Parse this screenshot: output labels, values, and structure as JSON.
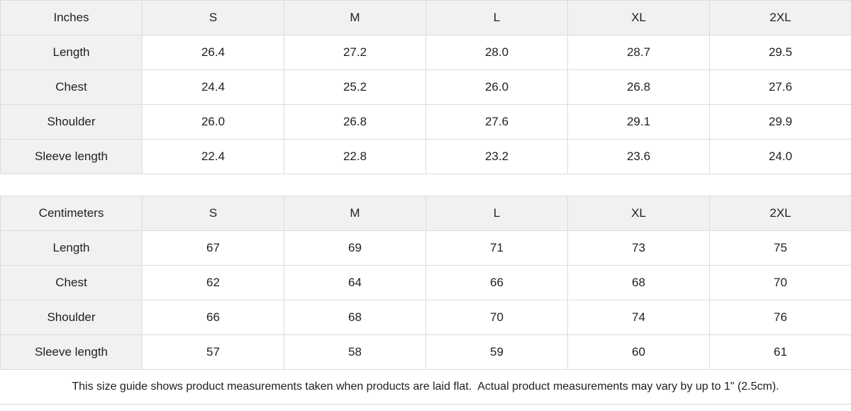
{
  "size_guide": {
    "inches": {
      "unit_label": "Inches",
      "sizes": [
        "S",
        "M",
        "L",
        "XL",
        "2XL"
      ],
      "rows": [
        {
          "label": "Length",
          "values": [
            "26.4",
            "27.2",
            "28.0",
            "28.7",
            "29.5"
          ]
        },
        {
          "label": "Chest",
          "values": [
            "24.4",
            "25.2",
            "26.0",
            "26.8",
            "27.6"
          ]
        },
        {
          "label": "Shoulder",
          "values": [
            "26.0",
            "26.8",
            "27.6",
            "29.1",
            "29.9"
          ]
        },
        {
          "label": "Sleeve length",
          "values": [
            "22.4",
            "22.8",
            "23.2",
            "23.6",
            "24.0"
          ]
        }
      ]
    },
    "centimeters": {
      "unit_label": "Centimeters",
      "sizes": [
        "S",
        "M",
        "L",
        "XL",
        "2XL"
      ],
      "rows": [
        {
          "label": "Length",
          "values": [
            "67",
            "69",
            "71",
            "73",
            "75"
          ]
        },
        {
          "label": "Chest",
          "values": [
            "62",
            "64",
            "66",
            "68",
            "70"
          ]
        },
        {
          "label": "Shoulder",
          "values": [
            "66",
            "68",
            "70",
            "74",
            "76"
          ]
        },
        {
          "label": "Sleeve length",
          "values": [
            "57",
            "58",
            "59",
            "60",
            "61"
          ]
        }
      ]
    },
    "disclaimer": "This size guide shows product measurements taken when products are laid flat.  Actual product measurements may vary by up to 1\" (2.5cm)."
  },
  "colors": {
    "header_bg": "#f1f1f1",
    "cell_bg": "#ffffff",
    "border": "#dcdcdc",
    "text": "#1f1f1f"
  }
}
